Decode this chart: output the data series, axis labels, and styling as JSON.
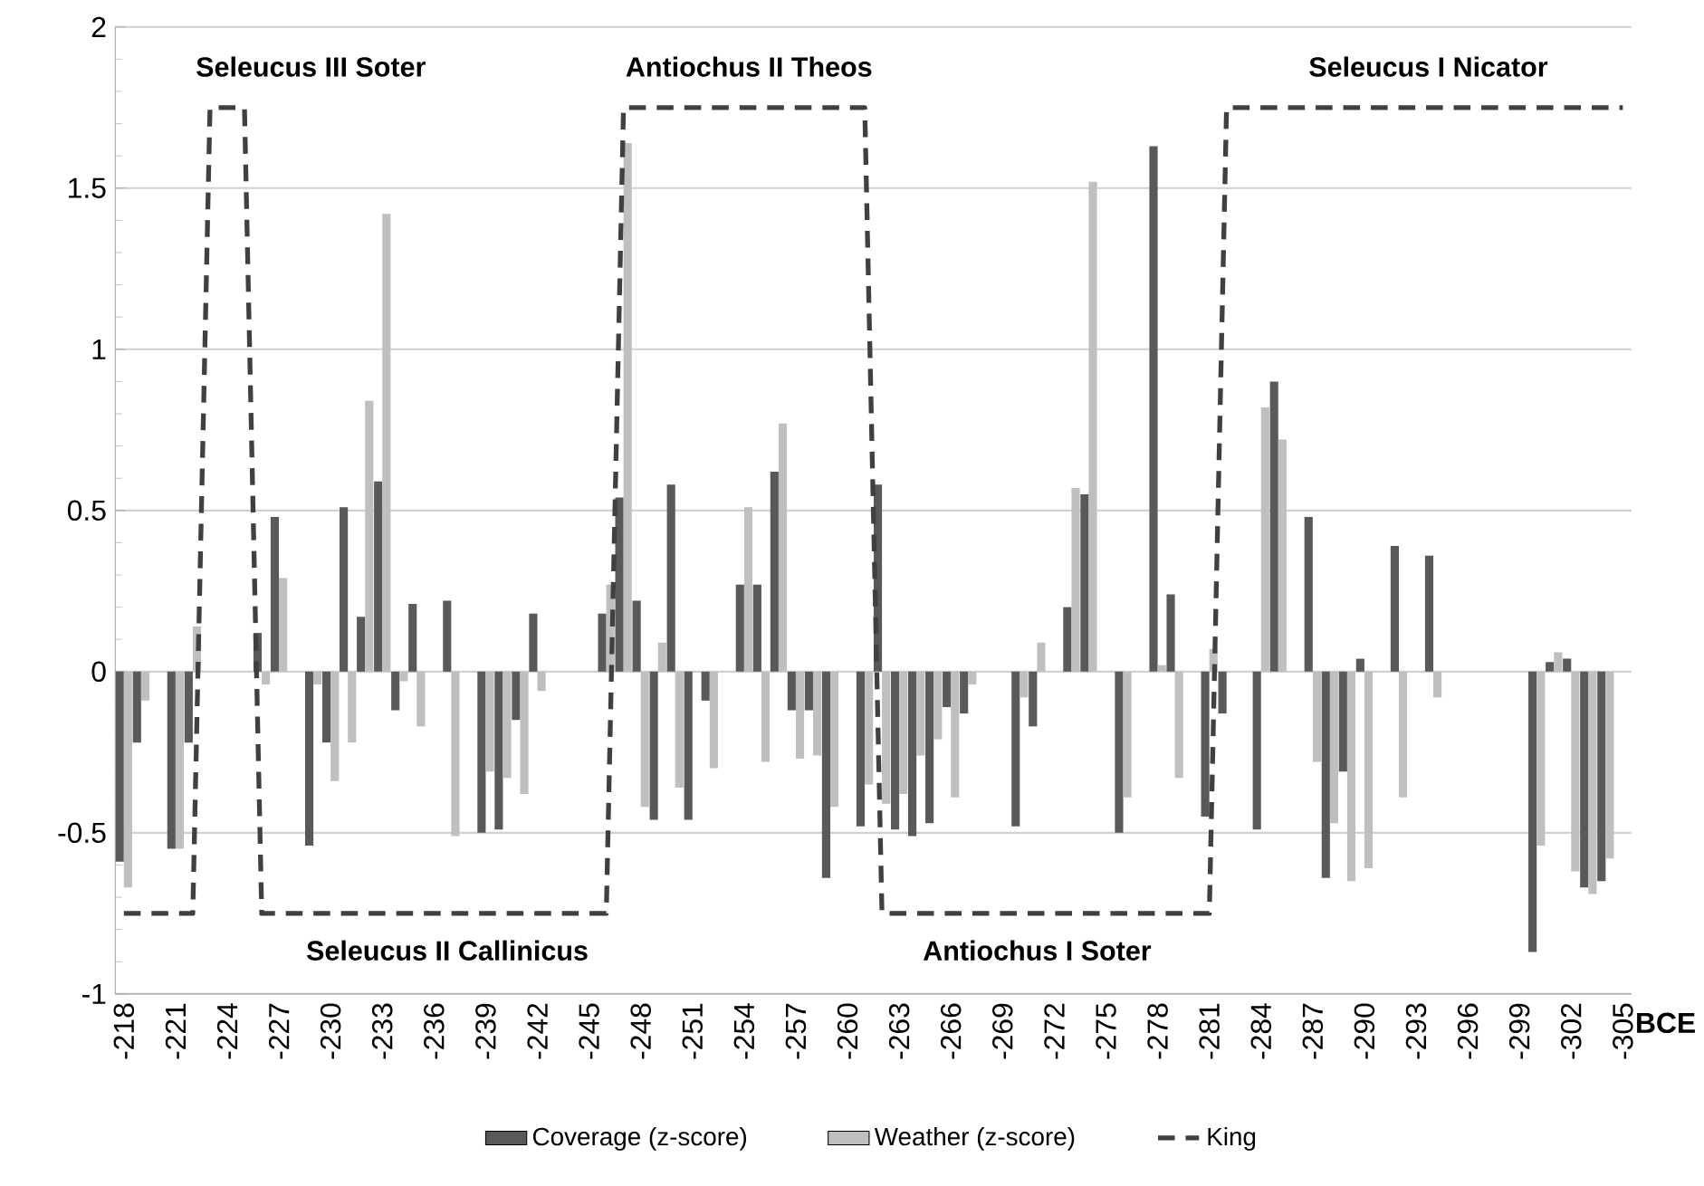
{
  "chart_data": {
    "type": "bar",
    "xlabel": "BCE",
    "categories": [
      "-218",
      null,
      null,
      "-221",
      null,
      null,
      "-224",
      null,
      null,
      "-227",
      null,
      null,
      "-230",
      null,
      null,
      "-233",
      null,
      null,
      "-236",
      null,
      null,
      "-239",
      null,
      null,
      "-242",
      null,
      null,
      "-245",
      null,
      null,
      "-248",
      null,
      null,
      "-251",
      null,
      null,
      "-254",
      null,
      null,
      "-257",
      null,
      null,
      "-260",
      null,
      null,
      "-263",
      null,
      null,
      "-266",
      null,
      null,
      "-269",
      null,
      null,
      "-272",
      null,
      null,
      "-275",
      null,
      null,
      "-278",
      null,
      null,
      "-281",
      null,
      null,
      "-284",
      null,
      null,
      "-287",
      null,
      null,
      "-290",
      null,
      null,
      "-293",
      null,
      null,
      "-296",
      null,
      null,
      "-299",
      null,
      null,
      "-302",
      null,
      null,
      "-305"
    ],
    "series": [
      {
        "name": "Coverage (z-score)",
        "color": "#595959",
        "values": [
          -0.59,
          -0.22,
          null,
          -0.55,
          -0.22,
          null,
          null,
          null,
          0.12,
          0.48,
          null,
          -0.54,
          -0.22,
          0.51,
          0.17,
          0.59,
          -0.12,
          0.21,
          null,
          0.22,
          null,
          -0.5,
          -0.49,
          -0.15,
          0.18,
          null,
          null,
          null,
          0.18,
          0.54,
          0.22,
          -0.46,
          0.58,
          -0.46,
          -0.09,
          null,
          0.27,
          0.27,
          0.62,
          -0.12,
          -0.12,
          -0.64,
          null,
          -0.48,
          0.58,
          -0.49,
          -0.51,
          -0.47,
          -0.11,
          -0.13,
          null,
          null,
          -0.48,
          -0.17,
          null,
          0.2,
          0.55,
          null,
          -0.5,
          null,
          1.63,
          0.24,
          null,
          -0.45,
          -0.13,
          null,
          -0.49,
          0.9,
          null,
          0.48,
          -0.64,
          -0.31,
          0.04,
          null,
          0.39,
          null,
          0.36,
          null,
          null,
          null,
          null,
          null,
          -0.87,
          0.03,
          0.04,
          -0.67,
          -0.65,
          null
        ]
      },
      {
        "name": "Weather (z-score)",
        "color": "#bfbfbf",
        "values": [
          -0.67,
          -0.09,
          null,
          -0.55,
          0.14,
          null,
          null,
          null,
          -0.04,
          0.29,
          null,
          -0.04,
          -0.34,
          -0.22,
          0.84,
          1.42,
          -0.03,
          -0.17,
          null,
          -0.51,
          null,
          -0.31,
          -0.33,
          -0.38,
          -0.06,
          null,
          null,
          null,
          0.27,
          1.64,
          -0.42,
          0.09,
          -0.36,
          null,
          -0.3,
          null,
          0.51,
          -0.28,
          0.77,
          -0.27,
          -0.26,
          -0.42,
          null,
          -0.35,
          -0.41,
          -0.38,
          -0.26,
          -0.21,
          -0.39,
          -0.04,
          null,
          null,
          -0.08,
          0.09,
          null,
          0.57,
          1.52,
          null,
          -0.39,
          null,
          0.02,
          -0.33,
          null,
          0.07,
          null,
          null,
          0.82,
          0.72,
          null,
          -0.28,
          -0.47,
          -0.65,
          -0.61,
          null,
          -0.39,
          null,
          -0.08,
          null,
          null,
          null,
          null,
          null,
          -0.54,
          0.06,
          -0.62,
          -0.69,
          -0.58,
          null
        ]
      },
      {
        "name": "King",
        "type": "line",
        "color": "#404040",
        "line_style": "dashed",
        "values": [
          -0.75,
          -0.75,
          -0.75,
          -0.75,
          -0.75,
          1.75,
          1.75,
          1.75,
          -0.75,
          -0.75,
          -0.75,
          -0.75,
          -0.75,
          -0.75,
          -0.75,
          -0.75,
          -0.75,
          -0.75,
          -0.75,
          -0.75,
          -0.75,
          -0.75,
          -0.75,
          -0.75,
          -0.75,
          -0.75,
          -0.75,
          -0.75,
          -0.75,
          1.75,
          1.75,
          1.75,
          1.75,
          1.75,
          1.75,
          1.75,
          1.75,
          1.75,
          1.75,
          1.75,
          1.75,
          1.75,
          1.75,
          1.75,
          -0.75,
          -0.75,
          -0.75,
          -0.75,
          -0.75,
          -0.75,
          -0.75,
          -0.75,
          -0.75,
          -0.75,
          -0.75,
          -0.75,
          -0.75,
          -0.75,
          -0.75,
          -0.75,
          -0.75,
          -0.75,
          -0.75,
          -0.75,
          1.75,
          1.75,
          1.75,
          1.75,
          1.75,
          1.75,
          1.75,
          1.75,
          1.75,
          1.75,
          1.75,
          1.75,
          1.75,
          1.75,
          1.75,
          1.75,
          1.75,
          1.75,
          1.75,
          1.75,
          1.75,
          1.75,
          1.75,
          1.75
        ]
      }
    ],
    "ylim": [
      -1,
      2
    ],
    "yticks": [
      -1,
      -0.5,
      0,
      0.5,
      1,
      1.5,
      2
    ],
    "grid": "y",
    "legend": "bottom",
    "annotations": [
      "Seleucus III Soter",
      "Antiochus II Theos",
      "Seleucus I Nicator",
      "Seleucus II Callinicus",
      "Antiochus I Soter"
    ]
  }
}
